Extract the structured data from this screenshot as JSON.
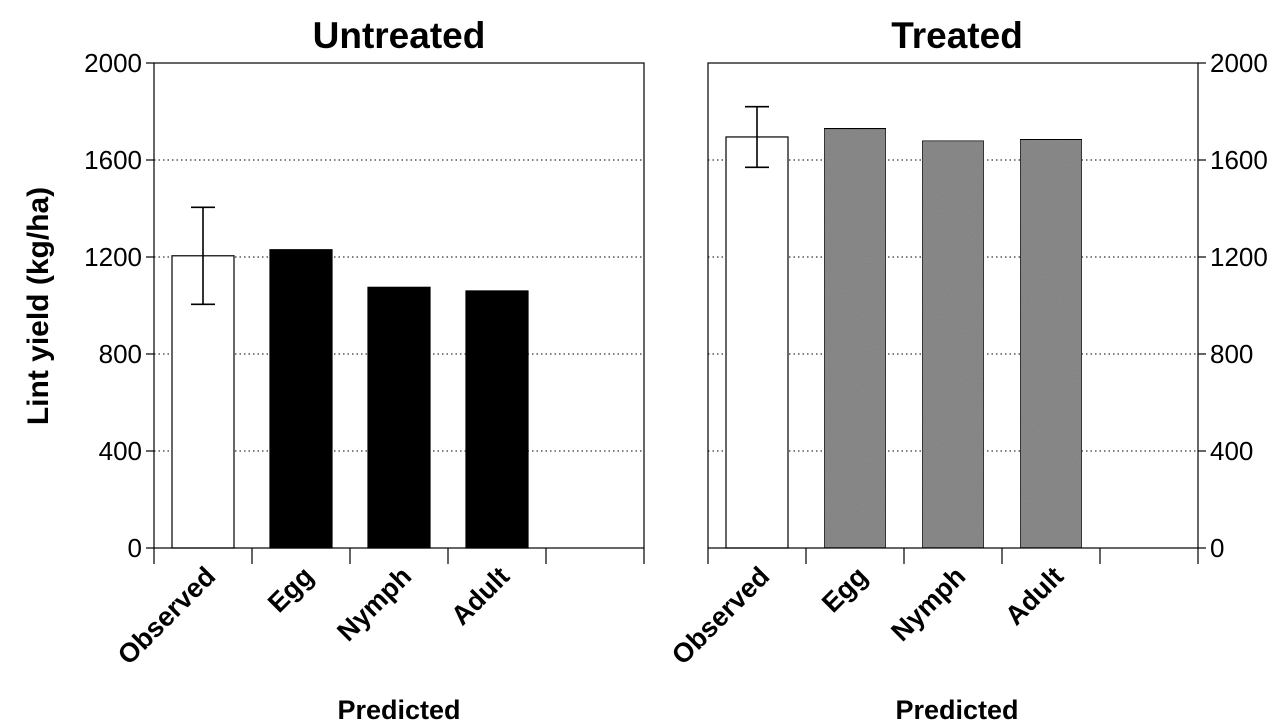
{
  "chart_data": [
    {
      "type": "bar",
      "title": "Untreated",
      "xlabel": "Predicted",
      "ylabel": "Lint yield (kg/ha)",
      "ylim": [
        0,
        2000
      ],
      "yticks": [
        "0",
        "400",
        "800",
        "1200",
        "1600",
        "2000"
      ],
      "y_axis_side": "left",
      "grid": "horizontal dotted",
      "categories": [
        "Observed",
        "Egg",
        "Nymph",
        "Adult"
      ],
      "values": [
        1205,
        1230,
        1075,
        1060
      ],
      "error": [
        200,
        null,
        null,
        null
      ],
      "colors": [
        "#ffffff",
        "#000000",
        "#000000",
        "#000000"
      ]
    },
    {
      "type": "bar",
      "title": "Treated",
      "xlabel": "Predicted",
      "ylabel": "",
      "ylim": [
        0,
        2000
      ],
      "yticks": [
        "0",
        "400",
        "800",
        "1200",
        "1600",
        "2000"
      ],
      "y_axis_side": "right",
      "grid": "horizontal dotted",
      "categories": [
        "Observed",
        "Egg",
        "Nymph",
        "Adult"
      ],
      "values": [
        1695,
        1730,
        1680,
        1685
      ],
      "error": [
        125,
        null,
        null,
        null
      ],
      "colors": [
        "#ffffff",
        "#8c8c8c",
        "#8c8c8c",
        "#8c8c8c"
      ]
    }
  ]
}
